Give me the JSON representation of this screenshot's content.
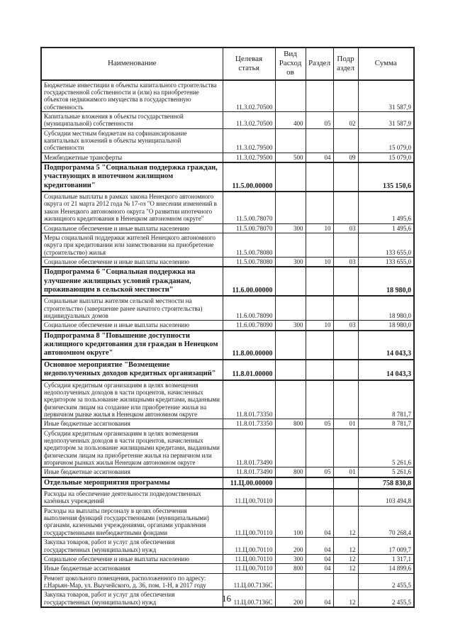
{
  "meta": {
    "ink_color": "#1a1a1a",
    "paper_color": "#ffffff"
  },
  "page": {
    "number": "16"
  },
  "table": {
    "headers": [
      "Наименование",
      "Целевая\nстатья",
      "Вид\nРасход\nов",
      "Раздел",
      "Подр\nаздел",
      "Сумма"
    ],
    "rows": [
      {
        "bold": false,
        "name": "Бюджетные инвестиции в объекты капитального строительства государственной собственности и (или) на приобретение объектов недвижимого имущества в государственную собственность",
        "code": "11.3.02.70500",
        "vr": "",
        "rz": "",
        "pr": "",
        "sum": "31 587,9"
      },
      {
        "bold": false,
        "name": "Капитальные вложения в объекты государственной (муниципальной) собственности",
        "code": "11.3.02.70500",
        "vr": "400",
        "rz": "05",
        "pr": "02",
        "sum": "31 587,9"
      },
      {
        "bold": false,
        "name": "Субсидии местным бюджетам на софинансирование капитальных вложений в объекты муниципальной собственности",
        "code": "11.3.02.79500",
        "vr": "",
        "rz": "",
        "pr": "",
        "sum": "15 079,0"
      },
      {
        "bold": false,
        "name": "Межбюджетные трансферты",
        "code": "11.3.02.79500",
        "vr": "500",
        "rz": "04",
        "pr": "09",
        "sum": "15 079,0"
      },
      {
        "bold": true,
        "name": "Подпрограмма 5 \"Социальная поддержка граждан, участвующих в ипотечном жилищном кредитовании\"",
        "code": "11.5.00.00000",
        "vr": "",
        "rz": "",
        "pr": "",
        "sum": "135 150,6"
      },
      {
        "bold": false,
        "name": "Социальные выплаты в рамках закона Ненецкого автономного округа от 21 марта 2012 года № 17-оз \"О внесении изменений в закон Ненецкого автономного округа \"О развитии ипотечного жилищного кредитования в Ненецком автономном округе\"",
        "code": "11.5.00.78070",
        "vr": "",
        "rz": "",
        "pr": "",
        "sum": "1 495,6"
      },
      {
        "bold": false,
        "name": "Социальное обеспечение и иные выплаты населению",
        "code": "11.5.00.78070",
        "vr": "300",
        "rz": "10",
        "pr": "03",
        "sum": "1 495,6"
      },
      {
        "bold": false,
        "name": "Меры социальной поддержки жителей Ненецкого автономного округа при кредитовании или заимствовании на приобретение (строительство) жилья",
        "code": "11.5.00.78080",
        "vr": "",
        "rz": "",
        "pr": "",
        "sum": "133 655,0"
      },
      {
        "bold": false,
        "name": "Социальное обеспечение и иные выплаты населению",
        "code": "11.5.00.78080",
        "vr": "300",
        "rz": "10",
        "pr": "03",
        "sum": "133 655,0"
      },
      {
        "bold": true,
        "name": "Подпрограмма 6 \"Социальная поддержка на улучшение жилищных условий гражданам, проживающим в сельской местности\"",
        "code": "11.6.00.00000",
        "vr": "",
        "rz": "",
        "pr": "",
        "sum": "18 980,0"
      },
      {
        "bold": false,
        "name": "Социальные выплаты жителям сельской местности на строительство (завершение ранее начатого строительства) индивидуальных домов",
        "code": "11.6.00.78090",
        "vr": "",
        "rz": "",
        "pr": "",
        "sum": "18 980,0"
      },
      {
        "bold": false,
        "name": "Социальное обеспечение и иные выплаты населению",
        "code": "11.6.00.78090",
        "vr": "300",
        "rz": "10",
        "pr": "03",
        "sum": "18 980,0"
      },
      {
        "bold": true,
        "name": "Подпрограмма 8 \"Повышение доступности жилищного кредитования для граждан в Ненецком автономном округе\"",
        "code": "11.8.00.00000",
        "vr": "",
        "rz": "",
        "pr": "",
        "sum": "14 043,3"
      },
      {
        "bold": true,
        "name": "Основное мероприятие \"Возмещение недополученных доходов кредитных организаций\"",
        "code": "11.8.01.00000",
        "vr": "",
        "rz": "",
        "pr": "",
        "sum": "14 043,3"
      },
      {
        "bold": false,
        "name": "Субсидии кредитным организациям в целях возмещения недополученных доходов в части процентов, начисленных кредитором за пользование жилищными кредитами, выданными физическим лицам на создание или приобретение жилья на первичном рынке жилья в Ненецком автономном округе",
        "code": "11.8.01.73350",
        "vr": "",
        "rz": "",
        "pr": "",
        "sum": "8 781,7"
      },
      {
        "bold": false,
        "name": "Иные бюджетные ассигнования",
        "code": "11.8.01.73350",
        "vr": "800",
        "rz": "05",
        "pr": "01",
        "sum": "8 781,7"
      },
      {
        "bold": false,
        "name": "Субсидии кредитным организациям в целях возмещения недополученных доходов в части процентов, начисленных кредитором за пользование жилищными кредитами, выданными физическим лицам на приобретение жилья на первичном или вторичном рынках жилья  Ненецком автономном округе",
        "code": "11.8.01.73490",
        "vr": "",
        "rz": "",
        "pr": "",
        "sum": "5 261,6"
      },
      {
        "bold": false,
        "name": "Иные бюджетные ассигнования",
        "code": "11.8.01.73490",
        "vr": "800",
        "rz": "05",
        "pr": "01",
        "sum": "5 261,6"
      },
      {
        "bold": true,
        "name": "Отдельные мероприятия программы",
        "code": "11.Ц.00.00000",
        "vr": "",
        "rz": "",
        "pr": "",
        "sum": "758 830,8"
      },
      {
        "bold": false,
        "name": "Расходы на обеспечение деятельности подведомственных казённых учреждений",
        "code": "11.Ц.00.70110",
        "vr": "",
        "rz": "",
        "pr": "",
        "sum": "103 494,8"
      },
      {
        "bold": false,
        "name": "Расходы на выплаты персоналу в целях обеспечения выполнения функций государственными (муниципальными) органами, казенными учреждениями, органами управления государственными внебюджетными фондами",
        "code": "11.Ц.00.70110",
        "vr": "100",
        "rz": "04",
        "pr": "12",
        "sum": "70 268,4"
      },
      {
        "bold": false,
        "name": "Закупка товаров, работ и услуг для обеспечения государственных (муниципальных) нужд",
        "code": "11.Ц.00.70110",
        "vr": "200",
        "rz": "04",
        "pr": "12",
        "sum": "17 009,7"
      },
      {
        "bold": false,
        "name": "Социальное обеспечение и иные выплаты населению",
        "code": "11.Ц.00.70110",
        "vr": "300",
        "rz": "04",
        "pr": "12",
        "sum": "1 317,1"
      },
      {
        "bold": false,
        "name": "Иные бюджетные ассигнования",
        "code": "11.Ц.00.70110",
        "vr": "800",
        "rz": "04",
        "pr": "12",
        "sum": "14 899,6"
      },
      {
        "bold": false,
        "name": "Ремонт цокольного помещения, расположенного по адресу: г.Нарьян-Мар, ул. Выучейского, д. 36, пом. 1-Н, в 2017 году",
        "code": "11.Ц.00.7136С",
        "vr": "",
        "rz": "",
        "pr": "",
        "sum": "2 455,5"
      },
      {
        "bold": false,
        "name": "Закупка товаров, работ и услуг для обеспечения государственных (муниципальных) нужд",
        "code": "11.Ц.00.7136С",
        "vr": "200",
        "rz": "04",
        "pr": "12",
        "sum": "2 455,5"
      }
    ]
  }
}
